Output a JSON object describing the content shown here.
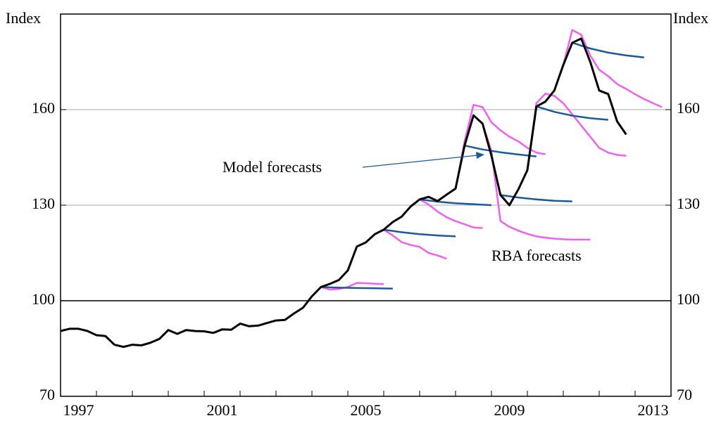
{
  "chart_data": {
    "type": "line",
    "y_label": "Index",
    "y2_label": "Index",
    "xlim": [
      1997,
      2014
    ],
    "xticks": [
      1997,
      1998,
      1999,
      2000,
      2001,
      2002,
      2003,
      2004,
      2005,
      2006,
      2007,
      2008,
      2009,
      2010,
      2011,
      2012,
      2013,
      2014
    ],
    "x_labels": [
      {
        "value": 1997.5,
        "label": "1997"
      },
      {
        "value": 2001.5,
        "label": "2001"
      },
      {
        "value": 2005.5,
        "label": "2005"
      },
      {
        "value": 2009.5,
        "label": "2009"
      },
      {
        "value": 2013.5,
        "label": "2013"
      }
    ],
    "ylim": [
      70,
      190
    ],
    "yticks": [
      70,
      100,
      130,
      160
    ],
    "y2lim": [
      70,
      190
    ],
    "y2ticks": [
      70,
      100,
      130,
      160
    ],
    "grid": true,
    "annotations": [
      {
        "text": "Model forecasts",
        "color": "#1a5a9a"
      },
      {
        "text": "RBA forecasts",
        "color": "#f15ff1"
      }
    ],
    "series": [
      {
        "color": "#f15ff1",
        "x": [
          2004.25,
          2004.5,
          2004.75,
          2005.0,
          2005.25,
          2006.0
        ],
        "values": [
          104.3,
          103.5,
          103.7,
          104.3,
          105.6,
          105.2
        ]
      },
      {
        "color": "#f15ff1",
        "x": [
          2006.0,
          2006.25,
          2006.5,
          2006.75,
          2007.0,
          2007.25,
          2007.5,
          2007.75
        ],
        "values": [
          122.3,
          120.5,
          118.4,
          117.5,
          116.9,
          115.0,
          114.2,
          113.2
        ]
      },
      {
        "color": "#f15ff1",
        "x": [
          2007.0,
          2007.25,
          2007.5,
          2007.75,
          2008.0,
          2008.25,
          2008.5,
          2008.75
        ],
        "values": [
          131.8,
          130.2,
          128.0,
          126.2,
          125.0,
          124.0,
          123.0,
          122.8
        ]
      },
      {
        "color": "#f15ff1",
        "x": [
          2008.0,
          2008.25,
          2008.5,
          2008.75,
          2009.0,
          2009.25,
          2009.5,
          2009.75,
          2010.0,
          2010.25,
          2010.5
        ],
        "values": [
          135.2,
          150.0,
          161.5,
          160.8,
          156.0,
          153.5,
          151.5,
          150.0,
          148.0,
          146.5,
          146.0
        ]
      },
      {
        "color": "#f15ff1",
        "x": [
          2008.75,
          2009.0,
          2009.25,
          2009.5,
          2009.75,
          2010.0,
          2010.25,
          2010.5,
          2010.75,
          2011.0,
          2011.25,
          2011.5,
          2011.75
        ],
        "values": [
          155.6,
          147.0,
          125.0,
          123.2,
          122.0,
          121.0,
          120.2,
          119.8,
          119.5,
          119.3,
          119.2,
          119.2,
          119.2
        ]
      },
      {
        "color": "#f15ff1",
        "x": [
          2009.75,
          2010.0,
          2010.25,
          2010.5,
          2010.75,
          2011.0,
          2011.25,
          2011.5,
          2011.75,
          2012.0,
          2012.25,
          2012.5,
          2012.75
        ],
        "values": [
          135.0,
          141.0,
          162.0,
          165.0,
          164.3,
          162.0,
          158.5,
          155.0,
          151.5,
          148.0,
          146.5,
          145.8,
          145.5
        ]
      },
      {
        "color": "#f15ff1",
        "x": [
          2011.0,
          2011.25,
          2011.5,
          2011.75,
          2012.0,
          2012.25,
          2012.5,
          2012.75,
          2013.0,
          2013.25,
          2013.5,
          2013.75
        ],
        "values": [
          174.0,
          185.0,
          183.5,
          177.0,
          172.5,
          170.5,
          168.0,
          166.5,
          164.8,
          163.3,
          162.0,
          160.8
        ]
      },
      {
        "color": "#1a5a9a",
        "x": [
          2004.25,
          2004.75,
          2005.25,
          2005.75,
          2006.25
        ],
        "values": [
          104.3,
          104.1,
          104.0,
          103.9,
          103.8
        ]
      },
      {
        "color": "#1a5a9a",
        "x": [
          2006.0,
          2006.5,
          2007.0,
          2007.5,
          2008.0
        ],
        "values": [
          122.3,
          121.5,
          120.9,
          120.5,
          120.2
        ]
      },
      {
        "color": "#1a5a9a",
        "x": [
          2007.0,
          2007.5,
          2008.0,
          2008.5,
          2009.0
        ],
        "values": [
          131.8,
          131.1,
          130.6,
          130.3,
          130.0
        ]
      },
      {
        "color": "#1a5a9a",
        "x": [
          2008.25,
          2008.75,
          2009.25,
          2009.75,
          2010.25
        ],
        "values": [
          148.7,
          147.5,
          146.6,
          145.9,
          145.3
        ]
      },
      {
        "color": "#1a5a9a",
        "x": [
          2009.25,
          2009.75,
          2010.25,
          2010.75,
          2011.25
        ],
        "values": [
          133.2,
          132.4,
          131.8,
          131.4,
          131.2
        ]
      },
      {
        "color": "#1a5a9a",
        "x": [
          2010.25,
          2010.75,
          2011.25,
          2011.75,
          2012.25
        ],
        "values": [
          161.0,
          159.3,
          158.1,
          157.3,
          156.8
        ]
      },
      {
        "color": "#1a5a9a",
        "x": [
          2011.25,
          2011.75,
          2012.25,
          2012.75,
          2013.25
        ],
        "values": [
          181.0,
          179.2,
          177.9,
          177.0,
          176.4
        ]
      },
      {
        "color": "#000000",
        "x": [
          1997.0,
          1997.25,
          1997.5,
          1997.75,
          1998.0,
          1998.25,
          1998.5,
          1998.75,
          1999.0,
          1999.25,
          1999.5,
          1999.75,
          2000.0,
          2000.25,
          2000.5,
          2000.75,
          2001.0,
          2001.25,
          2001.5,
          2001.75,
          2002.0,
          2002.25,
          2002.5,
          2002.75,
          2003.0,
          2003.25,
          2003.5,
          2003.75,
          2004.0,
          2004.25,
          2004.5,
          2004.75,
          2005.0,
          2005.25,
          2005.5,
          2005.75,
          2006.0,
          2006.25,
          2006.5,
          2006.75,
          2007.0,
          2007.25,
          2007.5,
          2007.75,
          2008.0,
          2008.25,
          2008.5,
          2008.75,
          2009.0,
          2009.25,
          2009.5,
          2009.75,
          2010.0,
          2010.25,
          2010.5,
          2010.75,
          2011.0,
          2011.25,
          2011.5,
          2011.75,
          2012.0,
          2012.25,
          2012.5,
          2012.75
        ],
        "values": [
          90.5,
          91.2,
          91.2,
          90.5,
          89.2,
          88.9,
          86.2,
          85.5,
          86.2,
          86.0,
          86.8,
          88.0,
          90.8,
          89.6,
          90.8,
          90.5,
          90.4,
          89.9,
          91.0,
          90.9,
          92.8,
          92.0,
          92.2,
          93.0,
          93.8,
          94.0,
          96.0,
          97.8,
          101.4,
          104.3,
          105.3,
          106.5,
          109.5,
          117.0,
          118.3,
          120.9,
          122.3,
          124.7,
          126.4,
          129.6,
          131.8,
          132.6,
          131.3,
          133.3,
          135.2,
          148.7,
          158.2,
          155.6,
          145.5,
          133.2,
          130.0,
          135.0,
          141.0,
          161.0,
          162.5,
          166.0,
          174.0,
          181.0,
          182.3,
          175.0,
          166.0,
          164.9,
          156.3,
          152.2
        ]
      }
    ]
  }
}
